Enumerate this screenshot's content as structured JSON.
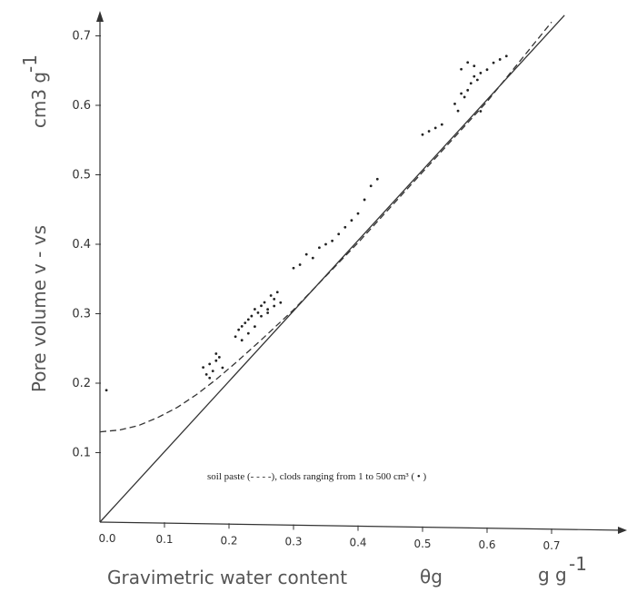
{
  "chart_data": {
    "type": "scatter",
    "title": "",
    "xlabel": "Gravimetric water content",
    "xlabel_symbol": "θg",
    "xlabel_unit": "g g",
    "xlabel_unit_exp": "-1",
    "ylabel": "Pore volume",
    "ylabel_symbol": "v - vs",
    "ylabel_unit": "cm3 g",
    "ylabel_unit_exp": "-1",
    "xlim": [
      0.0,
      0.78
    ],
    "ylim": [
      0.0,
      0.75
    ],
    "x_ticks": [
      "0.0",
      "0.1",
      "0.2",
      "0.3",
      "0.4",
      "0.5",
      "0.6",
      "0.7"
    ],
    "y_ticks": [
      "0.1",
      "0.2",
      "0.3",
      "0.4",
      "0.5",
      "0.6",
      "0.7"
    ],
    "legend_text": "soil paste (- - - -), clods ranging from 1 to 500 cm³ ( • )",
    "grid": false,
    "series": [
      {
        "style": "solid",
        "x": [
          0.0,
          0.72
        ],
        "y": [
          0.0,
          0.74
        ]
      },
      {
        "style": "dashed",
        "x": [
          0.0,
          0.03,
          0.06,
          0.09,
          0.12,
          0.15,
          0.18,
          0.21,
          0.25,
          0.3,
          0.4,
          0.5,
          0.6,
          0.7
        ],
        "y": [
          0.13,
          0.133,
          0.14,
          0.152,
          0.167,
          0.186,
          0.208,
          0.232,
          0.266,
          0.31,
          0.408,
          0.511,
          0.614,
          0.73
        ]
      },
      {
        "style": "points",
        "x": [
          0.01,
          0.16,
          0.165,
          0.17,
          0.175,
          0.18,
          0.185,
          0.19,
          0.17,
          0.18,
          0.21,
          0.215,
          0.22,
          0.225,
          0.23,
          0.235,
          0.24,
          0.245,
          0.25,
          0.255,
          0.26,
          0.265,
          0.27,
          0.275,
          0.28,
          0.22,
          0.23,
          0.24,
          0.25,
          0.26,
          0.27,
          0.3,
          0.31,
          0.32,
          0.33,
          0.34,
          0.35,
          0.36,
          0.37,
          0.38,
          0.39,
          0.4,
          0.41,
          0.42,
          0.43,
          0.5,
          0.51,
          0.52,
          0.53,
          0.55,
          0.555,
          0.56,
          0.565,
          0.57,
          0.575,
          0.58,
          0.585,
          0.59,
          0.6,
          0.61,
          0.62,
          0.63,
          0.56,
          0.57,
          0.58,
          0.59
        ],
        "y": [
          0.19,
          0.225,
          0.215,
          0.23,
          0.22,
          0.235,
          0.24,
          0.225,
          0.21,
          0.245,
          0.27,
          0.28,
          0.285,
          0.29,
          0.295,
          0.3,
          0.31,
          0.305,
          0.315,
          0.32,
          0.31,
          0.33,
          0.325,
          0.335,
          0.32,
          0.265,
          0.275,
          0.285,
          0.3,
          0.305,
          0.315,
          0.37,
          0.375,
          0.39,
          0.385,
          0.4,
          0.405,
          0.41,
          0.42,
          0.43,
          0.44,
          0.45,
          0.47,
          0.49,
          0.5,
          0.565,
          0.57,
          0.575,
          0.58,
          0.61,
          0.6,
          0.625,
          0.62,
          0.63,
          0.64,
          0.65,
          0.645,
          0.655,
          0.66,
          0.67,
          0.675,
          0.68,
          0.66,
          0.67,
          0.665,
          0.6
        ]
      }
    ]
  }
}
